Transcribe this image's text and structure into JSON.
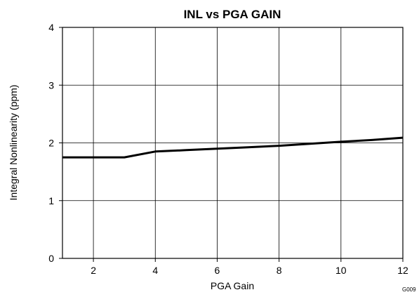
{
  "chart_data": {
    "type": "line",
    "title": "INL vs PGA GAIN",
    "xlabel": "PGA Gain",
    "ylabel": "Integral Nonlinearity (ppm)",
    "xlim": [
      1,
      12
    ],
    "ylim": [
      0,
      4
    ],
    "xticks": [
      2,
      4,
      6,
      8,
      10,
      12
    ],
    "yticks": [
      0,
      1,
      2,
      3,
      4
    ],
    "xgrid": [
      2,
      4,
      6,
      8,
      10,
      12
    ],
    "ygrid": [
      1,
      2,
      3
    ],
    "grid": true,
    "legend": "none",
    "series": [
      {
        "x": [
          1,
          2,
          3,
          4,
          5,
          6,
          7,
          8,
          9,
          10,
          11,
          12
        ],
        "y": [
          1.75,
          1.75,
          1.75,
          1.85,
          1.875,
          1.9,
          1.925,
          1.95,
          1.985,
          2.02,
          2.05,
          2.09
        ],
        "color": "#000000"
      }
    ],
    "figure_code": "G009"
  }
}
